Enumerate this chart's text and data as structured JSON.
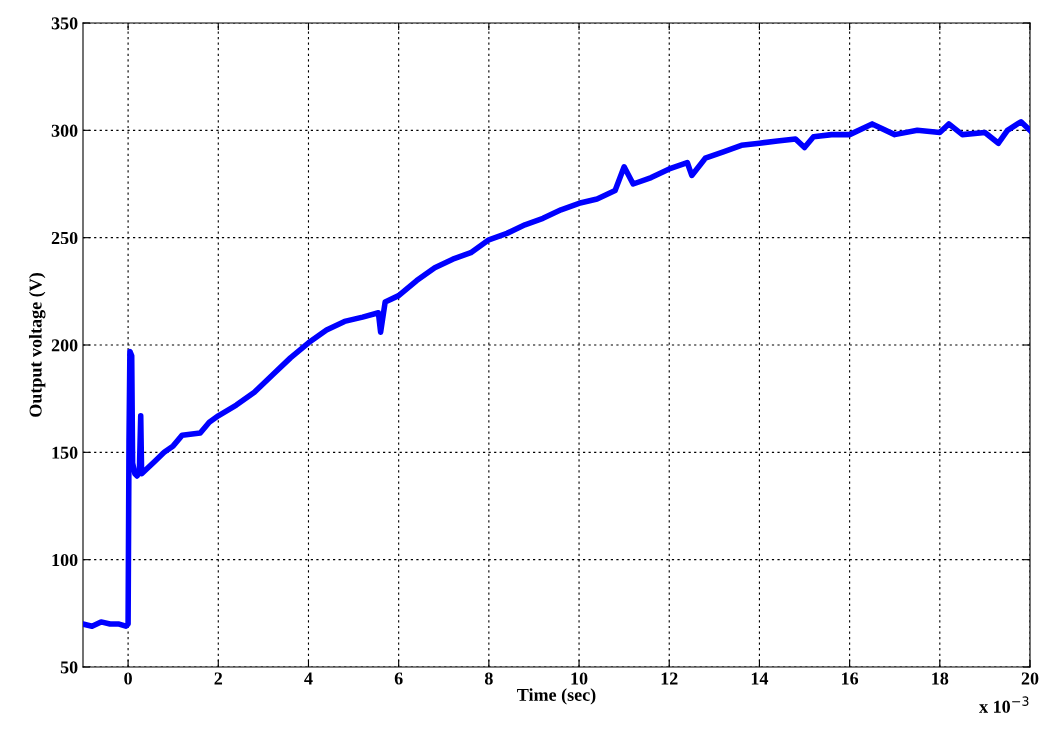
{
  "chart_data": {
    "type": "line",
    "xlabel": "Time (sec)",
    "ylabel": "Output voltage (V)",
    "annotations": [
      "x 10$^{−3}$"
    ],
    "xlim": [
      -1,
      20
    ],
    "xticks": [
      0,
      2,
      4,
      6,
      8,
      10,
      12,
      14,
      16,
      18,
      20
    ],
    "ylim": [
      50,
      350
    ],
    "yticks": [
      50,
      100,
      150,
      200,
      250,
      300,
      350
    ],
    "grid": true,
    "marker": "none",
    "series": [
      {
        "color": "#0000ff",
        "x": [
          -1,
          -0.8,
          -0.6,
          -0.4,
          -0.2,
          -0.05,
          0,
          0.02,
          0.04,
          0.08,
          0.1,
          0.15,
          0.2,
          0.25,
          0.28,
          0.3,
          0.4,
          0.6,
          0.8,
          1.0,
          1.2,
          1.6,
          1.8,
          2,
          2.4,
          2.8,
          3.2,
          3.6,
          4,
          4.4,
          4.8,
          5.2,
          5.55,
          5.6,
          5.7,
          6,
          6.4,
          6.8,
          7.2,
          7.6,
          8,
          8.4,
          8.8,
          9.2,
          9.6,
          10,
          10.4,
          10.8,
          11,
          11.2,
          11.6,
          12,
          12.4,
          12.5,
          12.8,
          13.2,
          13.6,
          14,
          14.4,
          14.8,
          15,
          15.2,
          15.6,
          16,
          16.5,
          17,
          17.5,
          18,
          18.2,
          18.5,
          19,
          19.3,
          19.5,
          19.8,
          20
        ],
        "values": [
          70,
          69,
          71,
          70,
          70,
          69,
          70,
          155,
          197,
          195,
          145,
          140,
          139,
          141,
          167,
          140,
          142,
          146,
          150,
          153,
          158,
          159,
          164,
          167,
          172,
          178,
          186,
          194,
          201,
          207,
          211,
          213,
          215,
          206,
          220,
          223,
          230,
          236,
          240,
          243,
          249,
          252,
          256,
          259,
          263,
          266,
          268,
          272,
          283,
          275,
          278,
          282,
          285,
          279,
          287,
          290,
          293,
          294,
          295,
          296,
          292,
          297,
          298,
          298,
          303,
          298,
          300,
          299,
          303,
          298,
          299,
          294,
          300,
          304,
          300
        ]
      }
    ]
  }
}
